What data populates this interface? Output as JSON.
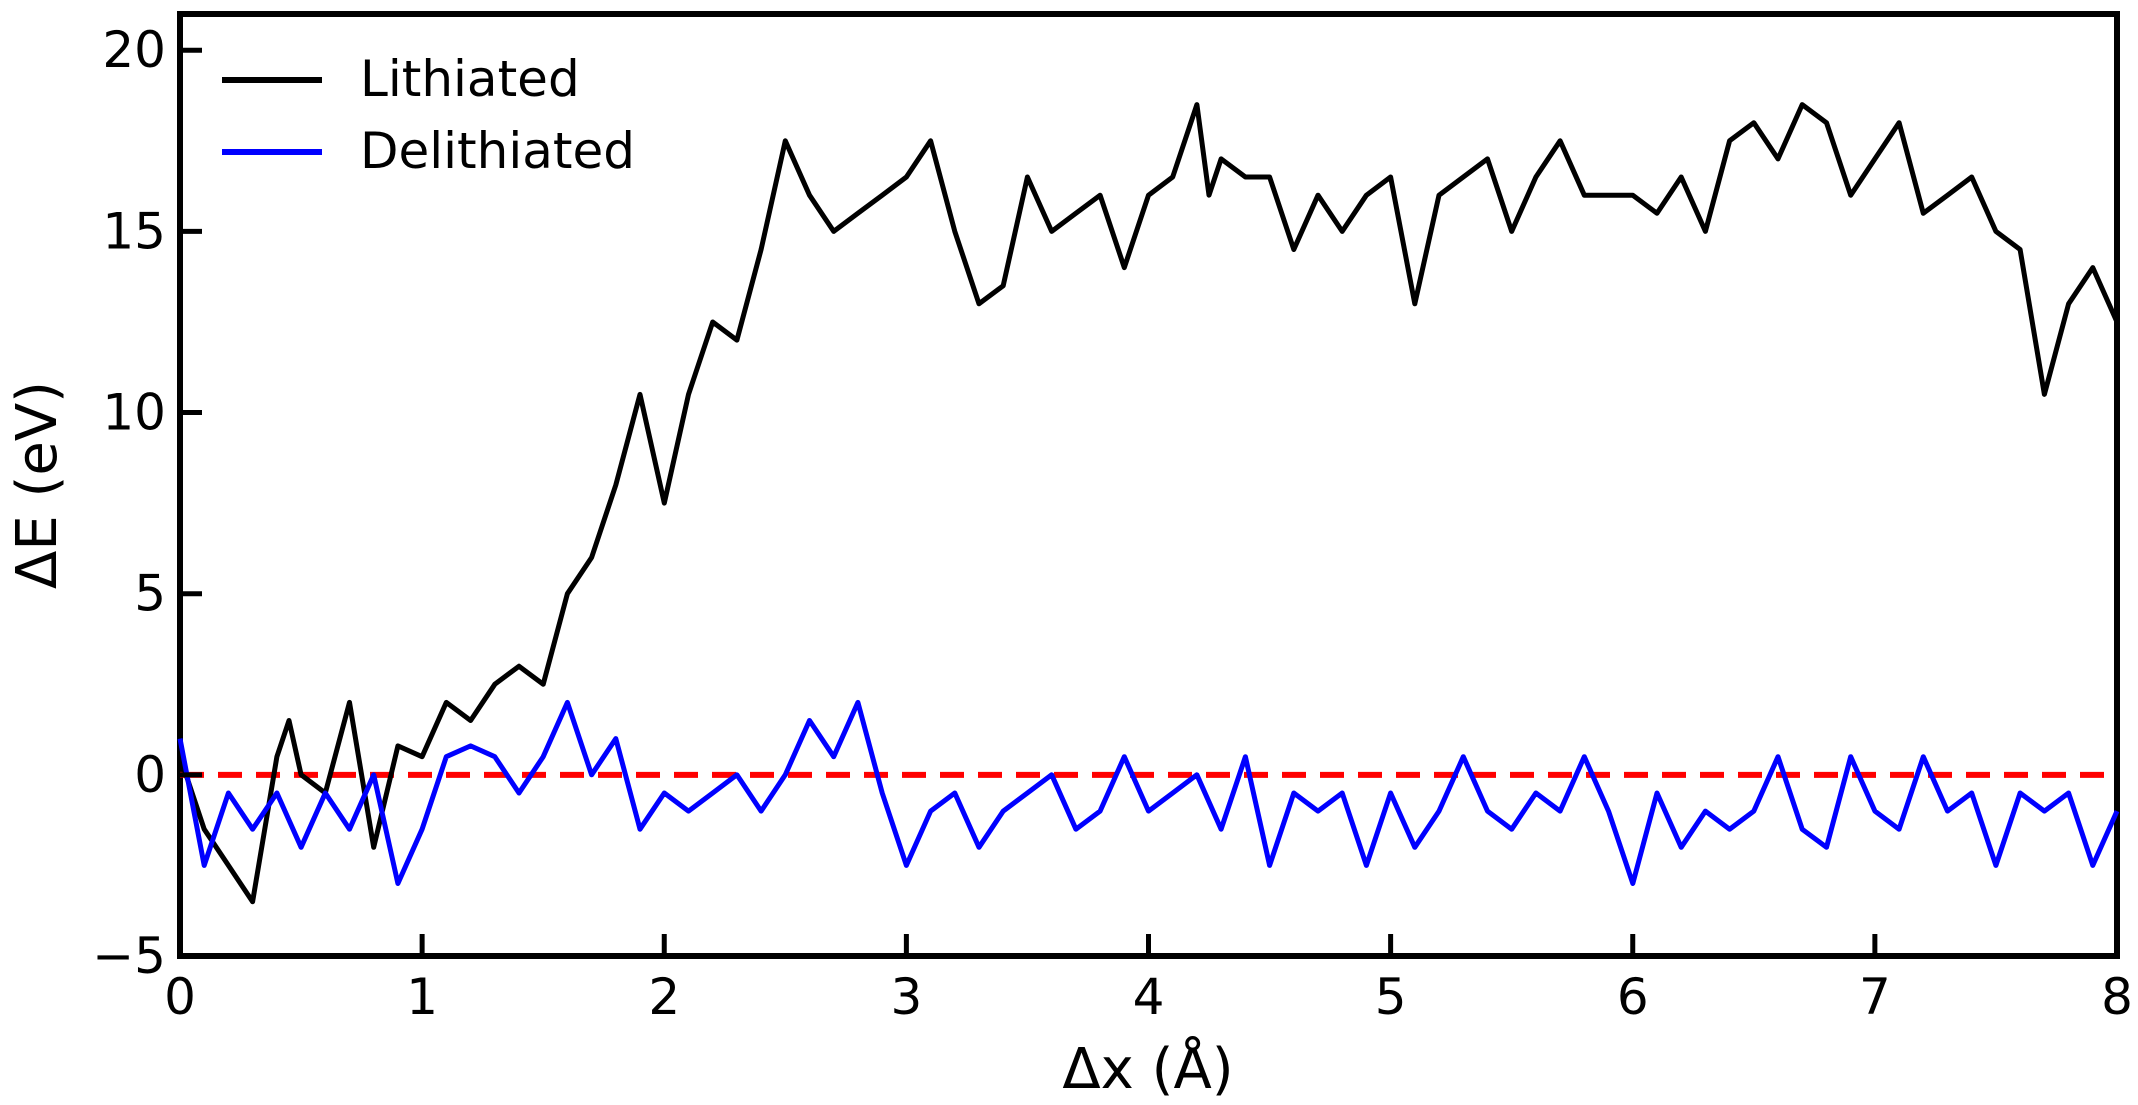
{
  "chart_data": {
    "type": "line",
    "title": "",
    "xlabel": "Δx (Å)",
    "ylabel": "ΔE (eV)",
    "xlim": [
      0,
      8
    ],
    "ylim": [
      -5,
      21
    ],
    "xticks": [
      0,
      1,
      2,
      3,
      4,
      5,
      6,
      7,
      8
    ],
    "yticks": [
      -5,
      0,
      5,
      10,
      15,
      20
    ],
    "grid": false,
    "legend_position": "top-left",
    "reference_line": {
      "y": 0,
      "style": "dashed",
      "color": "#ff0000"
    },
    "series": [
      {
        "name": "Lithiated",
        "color": "#000000",
        "x": [
          0,
          0.1,
          0.2,
          0.3,
          0.4,
          0.45,
          0.5,
          0.6,
          0.7,
          0.8,
          0.9,
          1.0,
          1.1,
          1.2,
          1.3,
          1.4,
          1.5,
          1.6,
          1.7,
          1.8,
          1.9,
          2.0,
          2.1,
          2.2,
          2.3,
          2.4,
          2.5,
          2.6,
          2.7,
          2.8,
          2.9,
          3.0,
          3.1,
          3.2,
          3.3,
          3.4,
          3.5,
          3.6,
          3.7,
          3.8,
          3.9,
          4.0,
          4.1,
          4.2,
          4.25,
          4.3,
          4.4,
          4.5,
          4.6,
          4.7,
          4.8,
          4.9,
          5.0,
          5.1,
          5.2,
          5.3,
          5.4,
          5.5,
          5.6,
          5.7,
          5.8,
          5.9,
          6.0,
          6.1,
          6.2,
          6.3,
          6.4,
          6.5,
          6.6,
          6.7,
          6.8,
          6.9,
          7.0,
          7.1,
          7.2,
          7.3,
          7.4,
          7.5,
          7.6,
          7.7,
          7.8,
          7.9,
          8.0
        ],
        "y": [
          0.5,
          -1.5,
          -2.5,
          -3.5,
          0.5,
          1.5,
          0.0,
          -0.5,
          2.0,
          -2.0,
          0.8,
          0.5,
          2.0,
          1.5,
          2.5,
          3.0,
          2.5,
          5.0,
          6.0,
          8.0,
          10.5,
          7.5,
          10.5,
          12.5,
          12.0,
          14.5,
          17.5,
          16.0,
          15.0,
          15.5,
          16.0,
          16.5,
          17.5,
          15.0,
          13.0,
          13.5,
          16.5,
          15.0,
          15.5,
          16.0,
          14.0,
          16.0,
          16.5,
          18.5,
          16.0,
          17.0,
          16.5,
          16.5,
          14.5,
          16.0,
          15.0,
          16.0,
          16.5,
          13.0,
          16.0,
          16.5,
          17.0,
          15.0,
          16.5,
          17.5,
          16.0,
          16.0,
          16.0,
          15.5,
          16.5,
          15.0,
          17.5,
          18.0,
          17.0,
          18.5,
          18.0,
          16.0,
          17.0,
          18.0,
          15.5,
          16.0,
          16.5,
          15.0,
          14.5,
          10.5,
          13.0,
          14.0,
          12.5
        ]
      },
      {
        "name": "Delithiated",
        "color": "#0000ff",
        "x": [
          0,
          0.1,
          0.2,
          0.3,
          0.4,
          0.5,
          0.6,
          0.7,
          0.8,
          0.9,
          1.0,
          1.1,
          1.2,
          1.3,
          1.4,
          1.5,
          1.6,
          1.7,
          1.8,
          1.9,
          2.0,
          2.1,
          2.2,
          2.3,
          2.4,
          2.5,
          2.6,
          2.7,
          2.8,
          2.9,
          3.0,
          3.1,
          3.2,
          3.3,
          3.4,
          3.5,
          3.6,
          3.7,
          3.8,
          3.9,
          4.0,
          4.1,
          4.2,
          4.3,
          4.4,
          4.5,
          4.6,
          4.7,
          4.8,
          4.9,
          5.0,
          5.1,
          5.2,
          5.3,
          5.4,
          5.5,
          5.6,
          5.7,
          5.8,
          5.9,
          6.0,
          6.1,
          6.2,
          6.3,
          6.4,
          6.5,
          6.6,
          6.7,
          6.8,
          6.9,
          7.0,
          7.1,
          7.2,
          7.3,
          7.4,
          7.5,
          7.6,
          7.7,
          7.8,
          7.9,
          8.0
        ],
        "y": [
          1.0,
          -2.5,
          -0.5,
          -1.5,
          -0.5,
          -2.0,
          -0.5,
          -1.5,
          0.0,
          -3.0,
          -1.5,
          0.5,
          0.8,
          0.5,
          -0.5,
          0.5,
          2.0,
          0.0,
          1.0,
          -1.5,
          -0.5,
          -1.0,
          -0.5,
          0.0,
          -1.0,
          0.0,
          1.5,
          0.5,
          2.0,
          -0.5,
          -2.5,
          -1.0,
          -0.5,
          -2.0,
          -1.0,
          -0.5,
          0.0,
          -1.5,
          -1.0,
          0.5,
          -1.0,
          -0.5,
          0.0,
          -1.5,
          0.5,
          -2.5,
          -0.5,
          -1.0,
          -0.5,
          -2.5,
          -0.5,
          -2.0,
          -1.0,
          0.5,
          -1.0,
          -1.5,
          -0.5,
          -1.0,
          0.5,
          -1.0,
          -3.0,
          -0.5,
          -2.0,
          -1.0,
          -1.5,
          -1.0,
          0.5,
          -1.5,
          -2.0,
          0.5,
          -1.0,
          -1.5,
          0.5,
          -1.0,
          -0.5,
          -2.5,
          -0.5,
          -1.0,
          -0.5,
          -2.5,
          -1.0
        ]
      }
    ]
  }
}
